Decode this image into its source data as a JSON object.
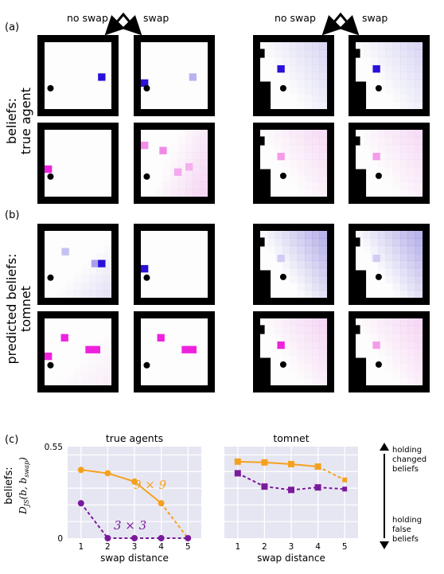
{
  "labels": {
    "panel_a": "(a)",
    "panel_b": "(b)",
    "panel_c": "(c)",
    "no_swap": "no swap",
    "swap": "swap",
    "row_a_line1": "beliefs:",
    "row_a_line2": "true agent",
    "row_b_line1": "predicted beliefs:",
    "row_b_line2": "tomnet",
    "beliefs_ylabel": "beliefs:",
    "beliefs_ylabel_math": "D_JS(b, b_swap)",
    "arrow_top_1": "holding",
    "arrow_top_2": "changed",
    "arrow_top_3": "beliefs",
    "arrow_bottom_1": "holding",
    "arrow_bottom_2": "false",
    "arrow_bottom_3": "beliefs"
  },
  "colors": {
    "blue_marker": "#2a10d8",
    "magenta_marker": "#ee22dd",
    "orange_series": "#f5a11e",
    "purple_series": "#7a1a9c",
    "plot_bg": "#e6e6f2",
    "wall": "#000000"
  },
  "chart_data": [
    {
      "type": "line",
      "title": "true agents",
      "xlabel": "swap distance",
      "ylabel": "beliefs: D_JS(b, b_swap)",
      "x": [
        1,
        2,
        3,
        4,
        5
      ],
      "xticks": [
        "1",
        "2",
        "3",
        "4",
        "5"
      ],
      "yticks": [
        "0",
        "0.55"
      ],
      "ylim": [
        0,
        0.55
      ],
      "grid": true,
      "series": [
        {
          "name": "9 × 9",
          "marker": "circle",
          "values": [
            0.41,
            0.39,
            0.34,
            0.21,
            0.0
          ]
        },
        {
          "name": "3 × 3",
          "marker": "circle",
          "values": [
            0.21,
            0.0,
            0.0,
            0.0,
            0.0
          ]
        }
      ]
    },
    {
      "type": "line",
      "title": "tomnet",
      "xlabel": "swap distance",
      "x": [
        1,
        2,
        3,
        4,
        5
      ],
      "xticks": [
        "1",
        "2",
        "3",
        "4",
        "5"
      ],
      "ylim": [
        0,
        0.55
      ],
      "grid": true,
      "series": [
        {
          "name": "9 × 9",
          "marker": "square",
          "values": [
            0.46,
            0.455,
            0.445,
            0.43,
            0.35
          ]
        },
        {
          "name": "3 × 3",
          "marker": "square",
          "values": [
            0.39,
            0.31,
            0.29,
            0.305,
            0.295
          ]
        }
      ]
    }
  ]
}
